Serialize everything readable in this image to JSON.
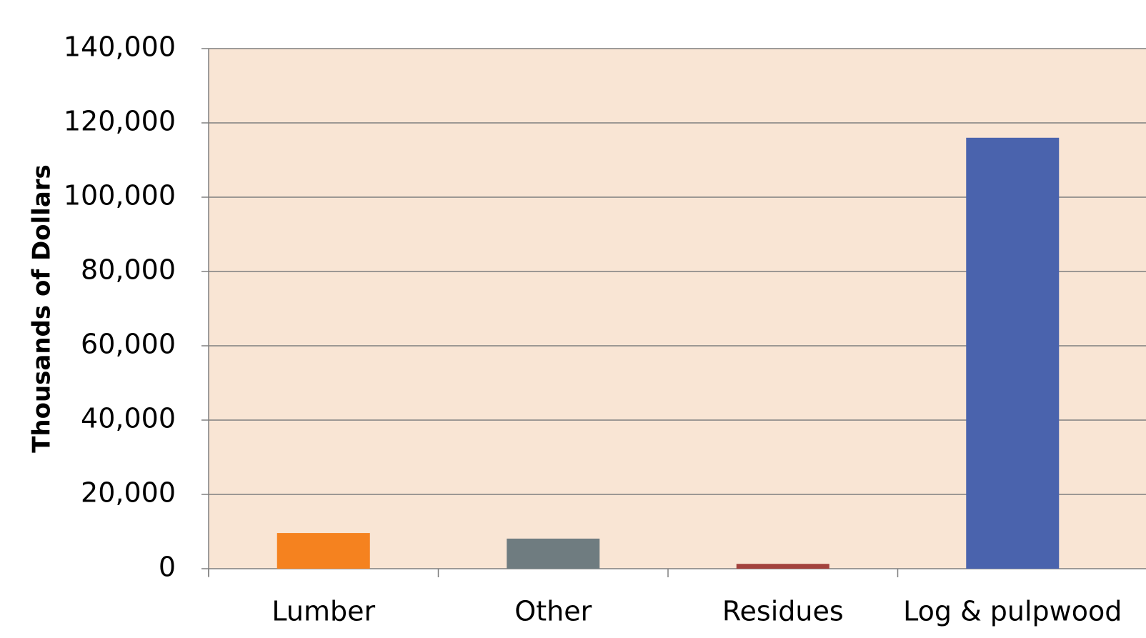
{
  "chart_data": {
    "type": "bar",
    "y_label": "Thousands of Dollars",
    "categories": [
      "Lumber",
      "Other",
      "Residues",
      "Log & pulpwood"
    ],
    "values": [
      9600,
      8100,
      1300,
      116000
    ],
    "colors": [
      "#f5821f",
      "#6f7c80",
      "#a3423d",
      "#4a63ad"
    ],
    "ylim": [
      0,
      140000
    ],
    "yticks": [
      0,
      {
        "value": 20000,
        "label": "20,000"
      },
      {
        "value": 40000,
        "label": "40,000"
      },
      {
        "value": 60000,
        "label": "60,000"
      },
      {
        "value": 80000,
        "label": "80,000"
      },
      {
        "value": 100000,
        "label": "100,000"
      },
      {
        "value": 120000,
        "label": "120,000"
      },
      {
        "value": 140000,
        "label": "140,000"
      }
    ],
    "grid": true
  }
}
